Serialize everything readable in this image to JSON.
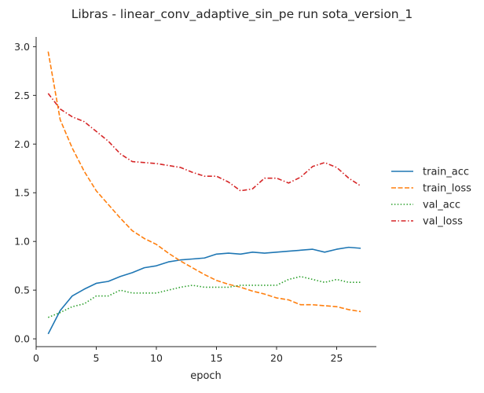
{
  "chart_data": {
    "type": "line",
    "title": "Libras - linear_conv_adaptive_sin_pe run sota_version_1",
    "xlabel": "epoch",
    "ylabel": "",
    "xlim": [
      0,
      28.3
    ],
    "ylim": [
      -0.08,
      3.1
    ],
    "xticks": [
      0,
      5,
      10,
      15,
      20,
      25
    ],
    "yticks": [
      0.0,
      0.5,
      1.0,
      1.5,
      2.0,
      2.5,
      3.0
    ],
    "xtick_labels": [
      "0",
      "5",
      "10",
      "15",
      "20",
      "25"
    ],
    "ytick_labels": [
      "0.0",
      "0.5",
      "1.0",
      "1.5",
      "2.0",
      "2.5",
      "3.0"
    ],
    "legend_position": "right",
    "grid": false,
    "x": [
      1,
      2,
      3,
      4,
      5,
      6,
      7,
      8,
      9,
      10,
      11,
      12,
      13,
      14,
      15,
      16,
      17,
      18,
      19,
      20,
      21,
      22,
      23,
      24,
      25,
      26,
      27
    ],
    "series": [
      {
        "name": "train_acc",
        "color": "#1f77b4",
        "dash": "solid",
        "values": [
          0.05,
          0.29,
          0.44,
          0.51,
          0.57,
          0.59,
          0.64,
          0.68,
          0.73,
          0.75,
          0.79,
          0.81,
          0.82,
          0.83,
          0.87,
          0.88,
          0.87,
          0.89,
          0.88,
          0.89,
          0.9,
          0.91,
          0.92,
          0.89,
          0.92,
          0.94,
          0.93
        ]
      },
      {
        "name": "train_loss",
        "color": "#ff7f0e",
        "dash": "dashed",
        "values": [
          2.95,
          2.25,
          1.96,
          1.72,
          1.52,
          1.38,
          1.24,
          1.11,
          1.03,
          0.97,
          0.88,
          0.8,
          0.73,
          0.66,
          0.6,
          0.56,
          0.53,
          0.49,
          0.46,
          0.42,
          0.4,
          0.35,
          0.35,
          0.34,
          0.33,
          0.3,
          0.28
        ]
      },
      {
        "name": "val_acc",
        "color": "#2ca02c",
        "dash": "dotted",
        "values": [
          0.22,
          0.27,
          0.33,
          0.36,
          0.44,
          0.44,
          0.5,
          0.47,
          0.47,
          0.47,
          0.5,
          0.53,
          0.55,
          0.53,
          0.53,
          0.53,
          0.55,
          0.55,
          0.55,
          0.55,
          0.61,
          0.64,
          0.61,
          0.58,
          0.61,
          0.58,
          0.58
        ]
      },
      {
        "name": "val_loss",
        "color": "#d62728",
        "dash": "dashdot",
        "values": [
          2.52,
          2.36,
          2.28,
          2.23,
          2.13,
          2.03,
          1.9,
          1.82,
          1.81,
          1.8,
          1.78,
          1.76,
          1.71,
          1.67,
          1.67,
          1.61,
          1.52,
          1.54,
          1.65,
          1.65,
          1.6,
          1.66,
          1.77,
          1.81,
          1.76,
          1.65,
          1.57
        ]
      }
    ]
  }
}
